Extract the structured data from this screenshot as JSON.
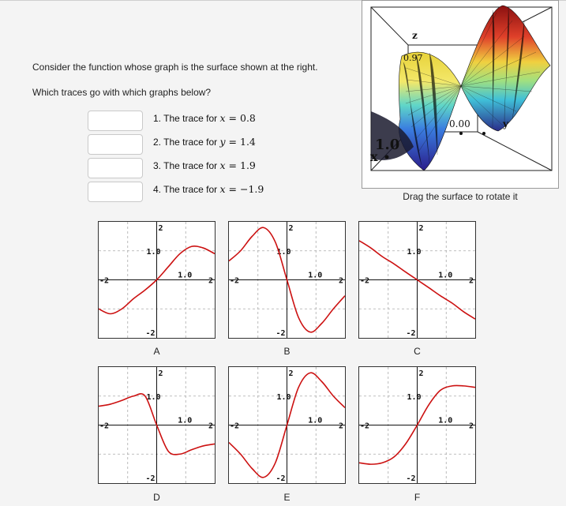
{
  "question": {
    "line1": "Consider the function whose graph is the surface shown at the right.",
    "line2": "Which traces go with which graphs below?"
  },
  "answers": [
    {
      "value": ""
    },
    {
      "value": ""
    },
    {
      "value": ""
    },
    {
      "value": ""
    }
  ],
  "items": [
    {
      "num": "1.",
      "text": "The trace for ",
      "var": "x",
      "eq": " = 0.8"
    },
    {
      "num": "2.",
      "text": "The trace for ",
      "var": "y",
      "eq": " = 1.4"
    },
    {
      "num": "3.",
      "text": "The trace for ",
      "var": "x",
      "eq": " = 1.9"
    },
    {
      "num": "4.",
      "text": "The trace for ",
      "var": "x",
      "eq": " = −1.9"
    }
  ],
  "surface": {
    "caption": "Drag the surface to rotate it",
    "axis_z": "z",
    "axis_x": "x",
    "val_top": "0.97",
    "val_mid": "0.00",
    "val_left": "1.0",
    "val_right": "y"
  },
  "graph_ticks": {
    "top": "2",
    "bottom": "-2",
    "left": "-2",
    "right": "2",
    "y1": "1.0",
    "x1": "1.0"
  },
  "chart_data": [
    {
      "type": "line",
      "label": "A",
      "xlim": [
        -2,
        2
      ],
      "ylim": [
        -2,
        2
      ],
      "x": [
        -2,
        -1.6,
        -1.2,
        -0.8,
        -0.4,
        0,
        0.4,
        0.8,
        1.2,
        1.6,
        2
      ],
      "y": [
        -1.0,
        -1.17,
        -1.0,
        -0.65,
        -0.35,
        0.0,
        0.45,
        0.9,
        1.15,
        1.1,
        0.9
      ]
    },
    {
      "type": "line",
      "label": "B",
      "xlim": [
        -2,
        2
      ],
      "ylim": [
        -2,
        2
      ],
      "x": [
        -2,
        -1.6,
        -1.2,
        -0.8,
        -0.4,
        0,
        0.4,
        0.8,
        1.2,
        1.6,
        2
      ],
      "y": [
        0.65,
        1.0,
        1.5,
        1.8,
        1.3,
        0.0,
        -1.3,
        -1.8,
        -1.5,
        -1.0,
        -0.55
      ]
    },
    {
      "type": "line",
      "label": "C",
      "xlim": [
        -2,
        2
      ],
      "ylim": [
        -2,
        2
      ],
      "x": [
        -2,
        -1.6,
        -1.2,
        -0.8,
        -0.4,
        0,
        0.4,
        0.8,
        1.2,
        1.6,
        2
      ],
      "y": [
        1.35,
        1.1,
        0.8,
        0.55,
        0.27,
        0.0,
        -0.27,
        -0.55,
        -0.8,
        -1.1,
        -1.35
      ]
    },
    {
      "type": "line",
      "label": "D",
      "xlim": [
        -2,
        2
      ],
      "ylim": [
        -2,
        2
      ],
      "x": [
        -2,
        -1.6,
        -1.2,
        -0.8,
        -0.4,
        0,
        0.4,
        0.8,
        1.2,
        1.6,
        2
      ],
      "y": [
        0.65,
        0.72,
        0.85,
        1.0,
        1.0,
        0.0,
        -0.9,
        -1.0,
        -0.85,
        -0.72,
        -0.65
      ]
    },
    {
      "type": "line",
      "label": "E",
      "xlim": [
        -2,
        2
      ],
      "ylim": [
        -2,
        2
      ],
      "x": [
        -2,
        -1.6,
        -1.2,
        -0.8,
        -0.4,
        0,
        0.4,
        0.8,
        1.2,
        1.6,
        2
      ],
      "y": [
        -0.6,
        -1.0,
        -1.5,
        -1.8,
        -1.3,
        0.0,
        1.3,
        1.8,
        1.5,
        1.0,
        0.6
      ]
    },
    {
      "type": "line",
      "label": "F",
      "xlim": [
        -2,
        2
      ],
      "ylim": [
        -2,
        2
      ],
      "x": [
        -2,
        -1.6,
        -1.2,
        -0.8,
        -0.4,
        0,
        0.4,
        0.8,
        1.2,
        1.6,
        2
      ],
      "y": [
        -1.3,
        -1.35,
        -1.3,
        -1.1,
        -0.65,
        0.0,
        0.7,
        1.2,
        1.35,
        1.35,
        1.3
      ]
    }
  ]
}
